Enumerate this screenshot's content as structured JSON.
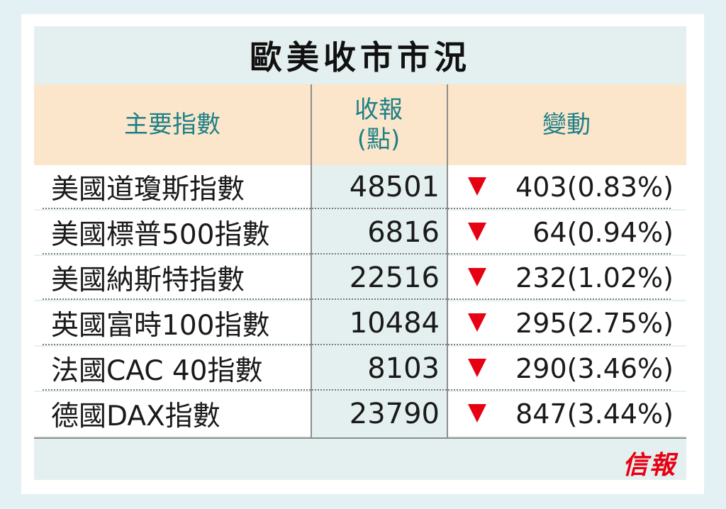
{
  "title": "歐美收市市況",
  "headers": {
    "index": "主要指數",
    "close_line1": "收報",
    "close_line2": "(點)",
    "change": "變動"
  },
  "rows": [
    {
      "name": "美國道瓊斯指數",
      "close": "48501",
      "direction": "down",
      "change": "403(0.83%)"
    },
    {
      "name": "美國標普500指數",
      "close": "6816",
      "direction": "down",
      "change": "64(0.94%)"
    },
    {
      "name": "美國納斯特指數",
      "close": "22516",
      "direction": "down",
      "change": "232(1.02%)"
    },
    {
      "name": "英國富時100指數",
      "close": "10484",
      "direction": "down",
      "change": "295(2.75%)"
    },
    {
      "name": "法國CAC 40指數",
      "close": "8103",
      "direction": "down",
      "change": "290(3.46%)"
    },
    {
      "name": "德國DAX指數",
      "close": "23790",
      "direction": "down",
      "change": "847(3.44%)"
    }
  ],
  "colors": {
    "header_text": "#1f7f86",
    "header_bg": "#fbe6cc",
    "down_arrow": "#e60012",
    "panel_bg": "#e4f0ef"
  },
  "icons": {
    "down": "down-triangle-icon"
  },
  "logo": "信報"
}
